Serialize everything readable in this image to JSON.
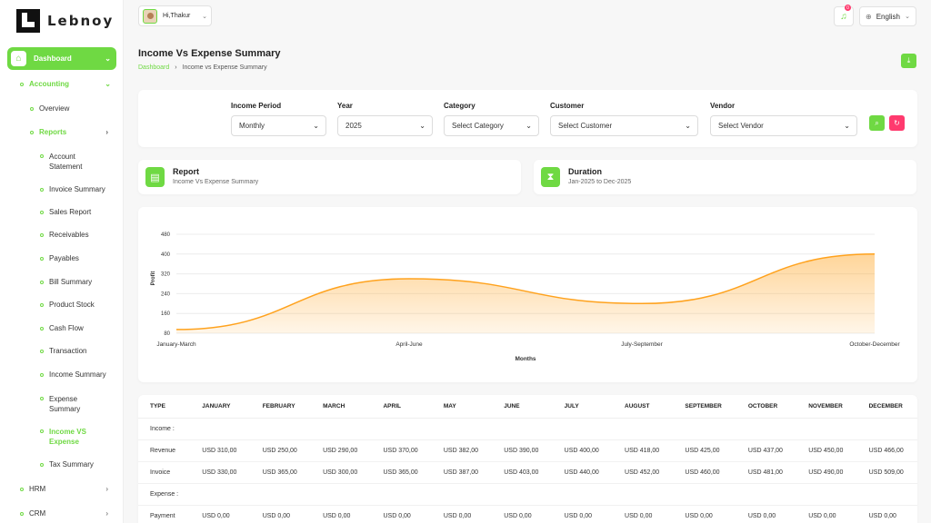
{
  "brand": {
    "name": "Lebnoy"
  },
  "sidebar": {
    "dashboard": "Dashboard",
    "accounting": "Accounting",
    "overview": "Overview",
    "reports": "Reports",
    "report_items": [
      "Account Statement",
      "Invoice Summary",
      "Sales Report",
      "Receivables",
      "Payables",
      "Bill Summary",
      "Product Stock",
      "Cash Flow",
      "Transaction",
      "Income Summary",
      "Expense Summary",
      "Income VS Expense",
      "Tax Summary"
    ],
    "hrm": "HRM",
    "crm": "CRM"
  },
  "topbar": {
    "greeting": "Hi,Thakur",
    "language": "English",
    "notification_count": "0"
  },
  "page": {
    "title": "Income Vs Expense Summary",
    "breadcrumb_home": "Dashboard",
    "breadcrumb_current": "Income vs Expense Summary"
  },
  "filters": {
    "income_period": {
      "label": "Income Period",
      "value": "Monthly"
    },
    "year": {
      "label": "Year",
      "value": "2025"
    },
    "category": {
      "label": "Category",
      "value": "Select Category"
    },
    "customer": {
      "label": "Customer",
      "value": "Select Customer"
    },
    "vendor": {
      "label": "Vendor",
      "value": "Select Vendor"
    }
  },
  "report_card": {
    "title": "Report",
    "value": "Income Vs Expense Summary"
  },
  "duration_card": {
    "title": "Duration",
    "value": "Jan-2025 to Dec-2025"
  },
  "colors": {
    "accent": "#6fd943",
    "danger": "#ff3a6e",
    "line": "#ffa21d"
  },
  "chart_data": {
    "type": "area",
    "categories": [
      "January-March",
      "April-June",
      "July-September",
      "October-December"
    ],
    "series": [
      {
        "values": [
          95,
          300,
          200,
          400
        ]
      }
    ],
    "xlabel": "Months",
    "ylabel": "Profit",
    "yticks": [
      80,
      160,
      240,
      320,
      400,
      480
    ],
    "ylim": [
      80,
      480
    ],
    "grid": true,
    "smooth": true
  },
  "table": {
    "headers": [
      "TYPE",
      "JANUARY",
      "FEBRUARY",
      "MARCH",
      "APRIL",
      "MAY",
      "JUNE",
      "JULY",
      "AUGUST",
      "SEPTEMBER",
      "OCTOBER",
      "NOVEMBER",
      "DECEMBER"
    ],
    "rows": [
      [
        "Income :",
        "",
        "",
        "",
        "",
        "",
        "",
        "",
        "",
        "",
        "",
        "",
        ""
      ],
      [
        "Revenue",
        "USD 310,00",
        "USD 250,00",
        "USD 290,00",
        "USD 370,00",
        "USD 382,00",
        "USD 390,00",
        "USD 400,00",
        "USD 418,00",
        "USD 425,00",
        "USD 437,00",
        "USD 450,00",
        "USD 466,00"
      ],
      [
        "Invoice",
        "USD 330,00",
        "USD 365,00",
        "USD 300,00",
        "USD 365,00",
        "USD 387,00",
        "USD 403,00",
        "USD 440,00",
        "USD 452,00",
        "USD 460,00",
        "USD 481,00",
        "USD 490,00",
        "USD 509,00"
      ],
      [
        "Expense :",
        "",
        "",
        "",
        "",
        "",
        "",
        "",
        "",
        "",
        "",
        "",
        ""
      ],
      [
        "Payment",
        "USD 0,00",
        "USD 0,00",
        "USD 0,00",
        "USD 0,00",
        "USD 0,00",
        "USD 0,00",
        "USD 0,00",
        "USD 0,00",
        "USD 0,00",
        "USD 0,00",
        "USD 0,00",
        "USD 0,00"
      ]
    ]
  }
}
